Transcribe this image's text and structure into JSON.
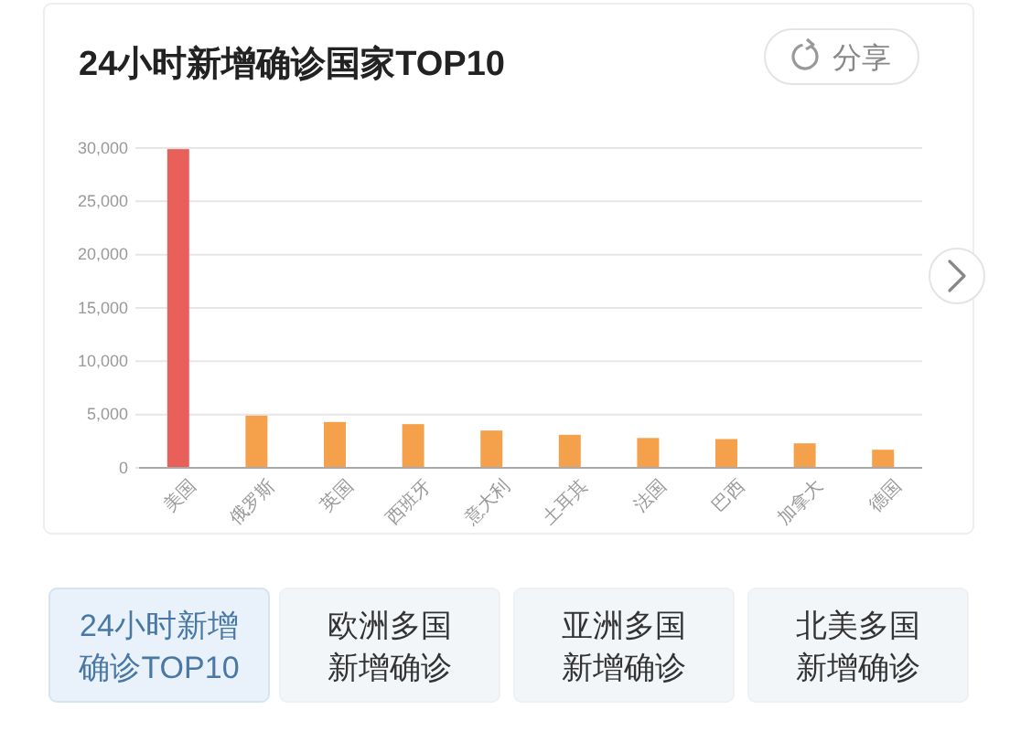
{
  "chart_data": {
    "type": "bar",
    "title": "24小时新增确诊国家TOP10",
    "categories": [
      "美国",
      "俄罗斯",
      "英国",
      "西班牙",
      "意大利",
      "土耳其",
      "法国",
      "巴西",
      "加拿大",
      "德国"
    ],
    "values": [
      29900,
      4900,
      4300,
      4100,
      3500,
      3100,
      2800,
      2700,
      2300,
      1700
    ],
    "colors": [
      "#e9605b",
      "#f5a04b",
      "#f5a04b",
      "#f5a04b",
      "#f5a04b",
      "#f5a04b",
      "#f5a04b",
      "#f5a04b",
      "#f5a04b",
      "#f5a04b"
    ],
    "ylim": [
      0,
      30000
    ],
    "yticks": [
      0,
      {
        "value": 5000,
        "label": "5,000"
      },
      {
        "value": 10000,
        "label": "10,000"
      },
      {
        "value": 15000,
        "label": "15,000"
      },
      {
        "value": 20000,
        "label": "20,000"
      },
      {
        "value": 25000,
        "label": "25,000"
      },
      {
        "value": 30000,
        "label": "30,000"
      }
    ],
    "grid": "y",
    "annotations": [
      "分享",
      "24小时新增确诊TOP10",
      "欧洲多国新增确诊",
      "亚洲多国新增确诊",
      "北美多国新增确诊"
    ]
  }
}
